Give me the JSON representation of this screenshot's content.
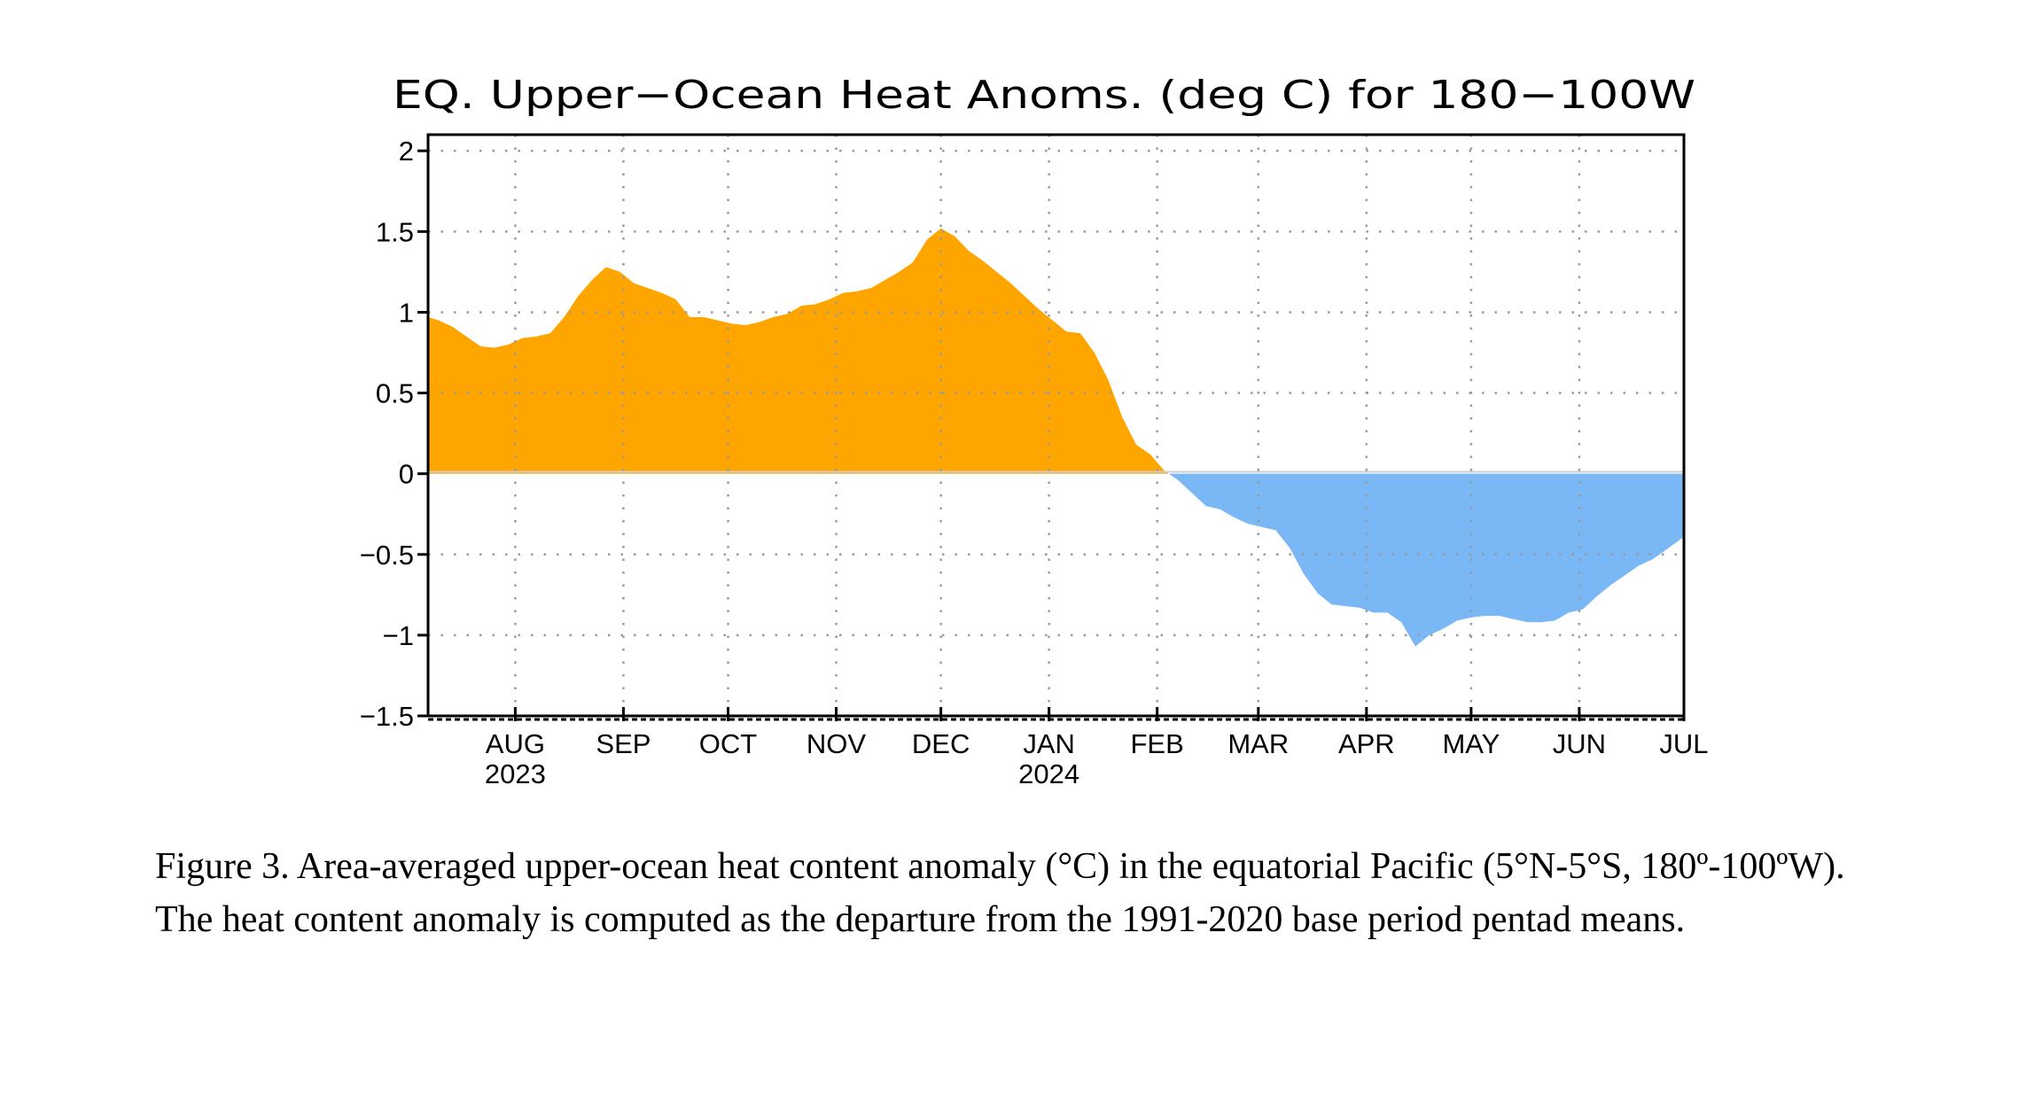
{
  "chart_data": {
    "type": "area",
    "title": "EQ. Upper−Ocean Heat Anoms. (deg C) for 180−100W",
    "xlabel": "",
    "ylabel": "",
    "ylim": [
      -1.5,
      2.1
    ],
    "yticks": [
      2,
      1.5,
      1,
      0.5,
      0,
      -0.5,
      -1,
      -1.5
    ],
    "ytick_labels": [
      "2",
      "1.5",
      "1",
      "0.5",
      "0",
      "−0.5",
      "−1",
      "−1.5"
    ],
    "xlim": [
      "2023-07-07",
      "2024-07-01"
    ],
    "x_month_ticks": [
      {
        "date": "2023-08-01",
        "label": "AUG",
        "year": "2023"
      },
      {
        "date": "2023-09-01",
        "label": "SEP",
        "year": ""
      },
      {
        "date": "2023-10-01",
        "label": "OCT",
        "year": ""
      },
      {
        "date": "2023-11-01",
        "label": "NOV",
        "year": ""
      },
      {
        "date": "2023-12-01",
        "label": "DEC",
        "year": ""
      },
      {
        "date": "2024-01-01",
        "label": "JAN",
        "year": "2024"
      },
      {
        "date": "2024-02-01",
        "label": "FEB",
        "year": ""
      },
      {
        "date": "2024-03-01",
        "label": "MAR",
        "year": ""
      },
      {
        "date": "2024-04-01",
        "label": "APR",
        "year": ""
      },
      {
        "date": "2024-05-01",
        "label": "MAY",
        "year": ""
      },
      {
        "date": "2024-06-01",
        "label": "JUN",
        "year": ""
      },
      {
        "date": "2024-07-01",
        "label": "JUL",
        "year": ""
      }
    ],
    "grid": true,
    "positive_color": "#ffa500",
    "negative_color": "#7ab7f5",
    "series": [
      {
        "x": [
          "2023-07-07",
          "2023-07-10",
          "2023-07-14",
          "2023-07-18",
          "2023-07-22",
          "2023-07-26",
          "2023-07-30",
          "2023-08-03",
          "2023-08-07",
          "2023-08-11",
          "2023-08-15",
          "2023-08-19",
          "2023-08-23",
          "2023-08-27",
          "2023-08-31",
          "2023-09-04",
          "2023-09-08",
          "2023-09-12",
          "2023-09-16",
          "2023-09-20",
          "2023-09-24",
          "2023-09-28",
          "2023-10-02",
          "2023-10-06",
          "2023-10-10",
          "2023-10-14",
          "2023-10-18",
          "2023-10-22",
          "2023-10-26",
          "2023-10-30",
          "2023-11-03",
          "2023-11-07",
          "2023-11-11",
          "2023-11-15",
          "2023-11-19",
          "2023-11-23",
          "2023-11-27",
          "2023-12-01",
          "2023-12-05",
          "2023-12-09",
          "2023-12-13",
          "2023-12-17",
          "2023-12-21",
          "2023-12-25",
          "2023-12-29",
          "2024-01-02",
          "2024-01-06",
          "2024-01-10",
          "2024-01-14",
          "2024-01-18",
          "2024-01-22",
          "2024-01-26",
          "2024-01-30",
          "2024-02-03",
          "2024-02-07",
          "2024-02-11",
          "2024-02-15",
          "2024-02-19",
          "2024-02-23",
          "2024-02-27",
          "2024-03-02",
          "2024-03-06",
          "2024-03-10",
          "2024-03-14",
          "2024-03-18",
          "2024-03-22",
          "2024-03-26",
          "2024-03-30",
          "2024-04-03",
          "2024-04-07",
          "2024-04-11",
          "2024-04-15",
          "2024-04-19",
          "2024-04-23",
          "2024-04-27",
          "2024-05-01",
          "2024-05-05",
          "2024-05-09",
          "2024-05-13",
          "2024-05-17",
          "2024-05-21",
          "2024-05-25",
          "2024-05-29",
          "2024-06-02",
          "2024-06-06",
          "2024-06-10",
          "2024-06-14",
          "2024-06-18",
          "2024-06-22",
          "2024-06-26",
          "2024-07-01"
        ],
        "y": [
          0.97,
          0.95,
          0.91,
          0.85,
          0.79,
          0.78,
          0.8,
          0.84,
          0.85,
          0.87,
          0.97,
          1.1,
          1.2,
          1.28,
          1.25,
          1.18,
          1.15,
          1.12,
          1.08,
          0.97,
          0.97,
          0.95,
          0.93,
          0.92,
          0.94,
          0.97,
          0.99,
          1.04,
          1.05,
          1.08,
          1.12,
          1.13,
          1.15,
          1.2,
          1.25,
          1.31,
          1.45,
          1.52,
          1.47,
          1.38,
          1.32,
          1.25,
          1.18,
          1.1,
          1.02,
          0.95,
          0.88,
          0.87,
          0.75,
          0.58,
          0.35,
          0.18,
          0.12,
          0.02,
          -0.04,
          -0.12,
          -0.2,
          -0.22,
          -0.27,
          -0.31,
          -0.33,
          -0.35,
          -0.46,
          -0.62,
          -0.74,
          -0.81,
          -0.82,
          -0.83,
          -0.86,
          -0.86,
          -0.92,
          -1.07,
          -1.0,
          -0.96,
          -0.91,
          -0.89,
          -0.88,
          -0.88,
          -0.9,
          -0.92,
          -0.92,
          -0.91,
          -0.86,
          -0.84,
          -0.76,
          -0.69,
          -0.63,
          -0.57,
          -0.53,
          -0.47,
          -0.39
        ]
      }
    ]
  },
  "caption": "Figure 3. Area-averaged upper-ocean heat content anomaly (°C) in the equatorial Pacific (5°N-5°S, 180º-100ºW). The heat content anomaly is computed as the departure from the 1991-2020 base period pentad means."
}
